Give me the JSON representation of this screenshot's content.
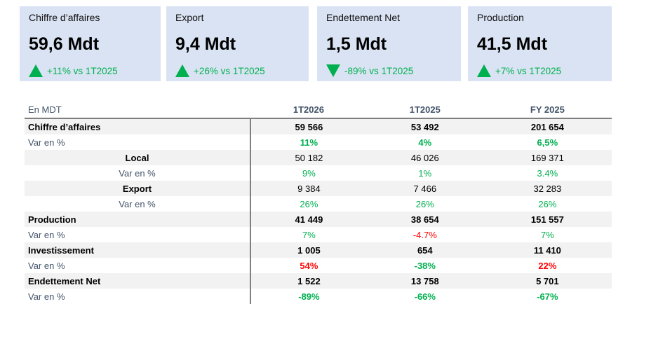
{
  "colors": {
    "card_bg": "#dae3f3",
    "positive": "#00b050",
    "negative": "#ff0000"
  },
  "cards": [
    {
      "title": "Chiffre d’affaires",
      "value": "59,6 Mdt",
      "delta": "+11% vs 1T2025",
      "icon": "triangle-up-icon"
    },
    {
      "title": "Export",
      "value": "9,4 Mdt",
      "delta": "+26% vs 1T2025",
      "icon": "triangle-up-icon"
    },
    {
      "title": "Endettement Net",
      "value": "1,5 Mdt",
      "delta": "-89% vs 1T2025",
      "icon": "triangle-down-icon"
    },
    {
      "title": "Production",
      "value": "41,5 Mdt",
      "delta": "+7% vs 1T2025",
      "icon": "triangle-up-icon"
    }
  ],
  "table": {
    "headers": [
      "En MDT",
      "1T2026",
      "1T2025",
      "FY 2025"
    ],
    "rows": [
      {
        "label": "Chiffre d’affaires",
        "values": [
          "59 566",
          "53 492",
          "201 654"
        ]
      },
      {
        "label": "Var en %",
        "values": [
          "11%",
          "4%",
          "6,5%"
        ]
      },
      {
        "label": "Local",
        "values": [
          "50 182",
          "46 026",
          "169 371"
        ]
      },
      {
        "label": "Var en %",
        "values": [
          "9%",
          "1%",
          "3.4%"
        ]
      },
      {
        "label": "Export",
        "values": [
          "9 384",
          "7 466",
          "32 283"
        ]
      },
      {
        "label": "Var en %",
        "values": [
          "26%",
          "26%",
          "26%"
        ]
      },
      {
        "label": "Production",
        "values": [
          "41 449",
          "38 654",
          "151 557"
        ]
      },
      {
        "label": "Var en %",
        "values": [
          "7%",
          "-4.7%",
          "7%"
        ]
      },
      {
        "label": "Investissement",
        "values": [
          "1 005",
          "654",
          "11 410"
        ]
      },
      {
        "label": "Var en %",
        "values": [
          "54%",
          "-38%",
          "22%"
        ]
      },
      {
        "label": "Endettement Net",
        "values": [
          "1 522",
          "13 758",
          "5 701"
        ]
      },
      {
        "label": "Var en %",
        "values": [
          "-89%",
          "-66%",
          "-67%"
        ]
      }
    ]
  }
}
